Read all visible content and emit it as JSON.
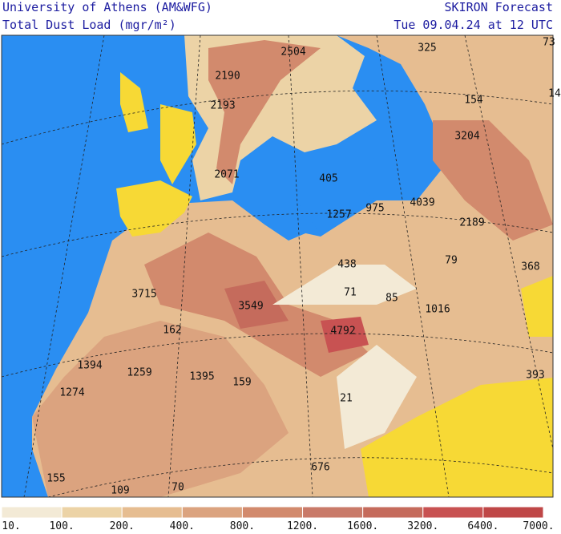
{
  "header": {
    "institution": "University of Athens (AM&WFG)",
    "product": "Total Dust Load (mgr/m²)",
    "model": "SKIRON Forecast",
    "date": "Tue 09.04.24 at 12 UTC"
  },
  "map_labels": [
    "2504",
    "325",
    "73",
    "2190",
    "154",
    "14",
    "2193",
    "3204",
    "2071",
    "405",
    "4039",
    "975",
    "1257",
    "2189",
    "79",
    "438",
    "368",
    "71",
    "85",
    "3715",
    "3549",
    "1016",
    "162",
    "4792",
    "1394",
    "1259",
    "1395",
    "159",
    "393",
    "1274",
    "21",
    "676",
    "155",
    "109",
    "70"
  ],
  "colorbar": {
    "labels": [
      "10.",
      "100.",
      "200.",
      "400.",
      "800.",
      "1200.",
      "1600.",
      "3200.",
      "6400.",
      "7000."
    ],
    "colors": [
      "#f3ead6",
      "#ecd3a6",
      "#e6bd91",
      "#dba37f",
      "#d28a6d",
      "#c97a69",
      "#c56b5c",
      "#c85252",
      "#bf4747"
    ]
  }
}
